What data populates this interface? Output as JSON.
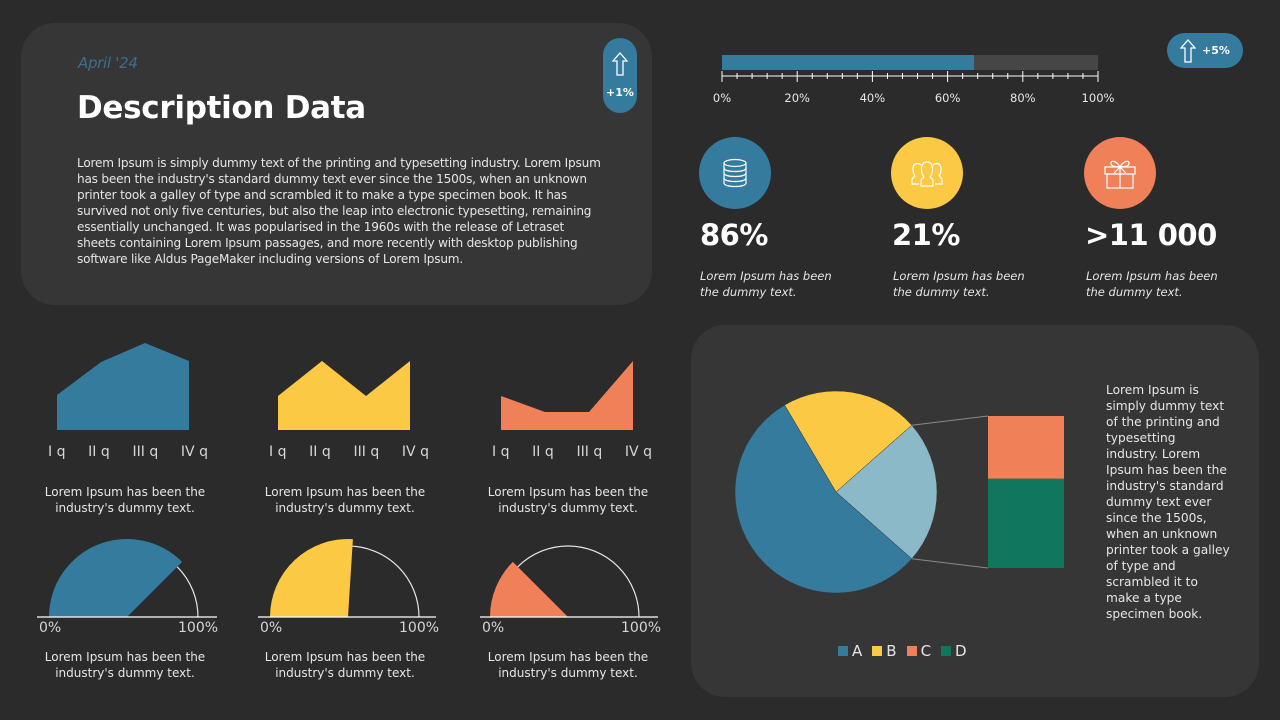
{
  "header": {
    "date": "April '24",
    "title": "Description Data",
    "body": "Lorem Ipsum is simply dummy text of the printing and typesetting industry. Lorem Ipsum has been the industry's standard dummy text ever since the 1500s, when an unknown printer took a galley of type and scrambled it to make a type specimen book. It has survived not only five centuries, but also the leap into electronic typesetting, remaining essentially unchanged. It was popularised in the 1960s with the release of Letraset sheets containing Lorem Ipsum passages, and more recently with desktop publishing software like Aldus PageMaker including versions of Lorem Ipsum."
  },
  "badges": {
    "left": {
      "icon": "arrow-up-icon",
      "label": "+1%"
    },
    "right": {
      "icon": "arrow-up-icon",
      "label": "+5%"
    }
  },
  "colors": {
    "background": "#2b2b2b",
    "panel": "#363636",
    "blue": "#347b9e",
    "yellow": "#fbc943",
    "orange": "#ef8058",
    "light_blue": "#8bb9c7",
    "green": "#10765c",
    "track": "#464646"
  },
  "stats": [
    {
      "icon": "database-icon",
      "color": "#347b9e",
      "value": "86%",
      "caption": "Lorem Ipsum  has been the dummy  text."
    },
    {
      "icon": "users-icon",
      "color": "#fbc943",
      "value": "21%",
      "caption": "Lorem Ipsum  has been the dummy  text."
    },
    {
      "icon": "gift-icon",
      "color": "#ef8058",
      "value": ">11 000",
      "caption": "Lorem Ipsum  has been the dummy  text."
    }
  ],
  "captions": {
    "area_1": "Lorem Ipsum has been the industry's dummy text.",
    "area_2": "Lorem Ipsum has been the industry's dummy text.",
    "area_3": "Lorem Ipsum has been the industry's dummy text.",
    "gauge_1": "Lorem Ipsum has been the industry's dummy text.",
    "gauge_2": "Lorem Ipsum has been the industry's dummy text.",
    "gauge_3": "Lorem Ipsum has been the industry's dummy text."
  },
  "pie_text": "Lorem Ipsum is simply dummy text of the printing and typesetting industry. Lorem Ipsum has been the industry's standard dummy text ever since the 1500s, when an unknown printer took a galley of type and scrambled it to make a type specimen book.",
  "chart_data": [
    {
      "type": "bar",
      "title": "Progress",
      "orientation": "horizontal",
      "values": [
        67
      ],
      "xlim": [
        0,
        100
      ],
      "tick_labels": [
        "0%",
        "20%",
        "40%",
        "60%",
        "80%",
        "100%"
      ],
      "color": "#347b9e"
    },
    {
      "type": "area",
      "categories": [
        "I q",
        "II q",
        "III q",
        "IV q"
      ],
      "values": [
        35,
        68,
        87,
        69
      ],
      "ylim": [
        0,
        100
      ],
      "color": "#347b9e"
    },
    {
      "type": "area",
      "categories": [
        "I q",
        "II q",
        "III q",
        "IV q"
      ],
      "values": [
        34,
        69,
        34,
        69
      ],
      "ylim": [
        0,
        100
      ],
      "color": "#fbc943"
    },
    {
      "type": "area",
      "categories": [
        "I q",
        "II q",
        "III q",
        "IV q"
      ],
      "values": [
        34,
        18,
        18,
        69
      ],
      "ylim": [
        0,
        100
      ],
      "color": "#ef8058"
    },
    {
      "type": "pie",
      "subtype": "half-gauge",
      "value": 75,
      "tick_labels": [
        "0%",
        "100%"
      ],
      "color": "#347b9e"
    },
    {
      "type": "pie",
      "subtype": "half-gauge",
      "value": 52,
      "tick_labels": [
        "0%",
        "100%"
      ],
      "color": "#fbc943"
    },
    {
      "type": "pie",
      "subtype": "half-gauge",
      "value": 25,
      "tick_labels": [
        "0%",
        "100%"
      ],
      "color": "#ef8058"
    },
    {
      "type": "pie",
      "subtype": "bar-of-pie",
      "categories": [
        "A",
        "B",
        "C",
        "D"
      ],
      "values": [
        55,
        22,
        9.5,
        13.5
      ],
      "colors": [
        "#347b9e",
        "#fbc943",
        "#ef8058",
        "#10765c"
      ],
      "legend": [
        "A",
        "B",
        "C",
        "D"
      ],
      "legend_position": "bottom"
    }
  ],
  "legend": [
    {
      "label": "A",
      "color": "#347b9e"
    },
    {
      "label": "B",
      "color": "#fbc943"
    },
    {
      "label": "C",
      "color": "#ef8058"
    },
    {
      "label": "D",
      "color": "#10765c"
    }
  ],
  "quarter_labels": [
    "I q",
    "II q",
    "III q",
    "IV q"
  ],
  "gauge_labels": {
    "min": "0%",
    "max": "100%"
  },
  "progress_ticks": [
    "0%",
    "20%",
    "40%",
    "60%",
    "80%",
    "100%"
  ]
}
